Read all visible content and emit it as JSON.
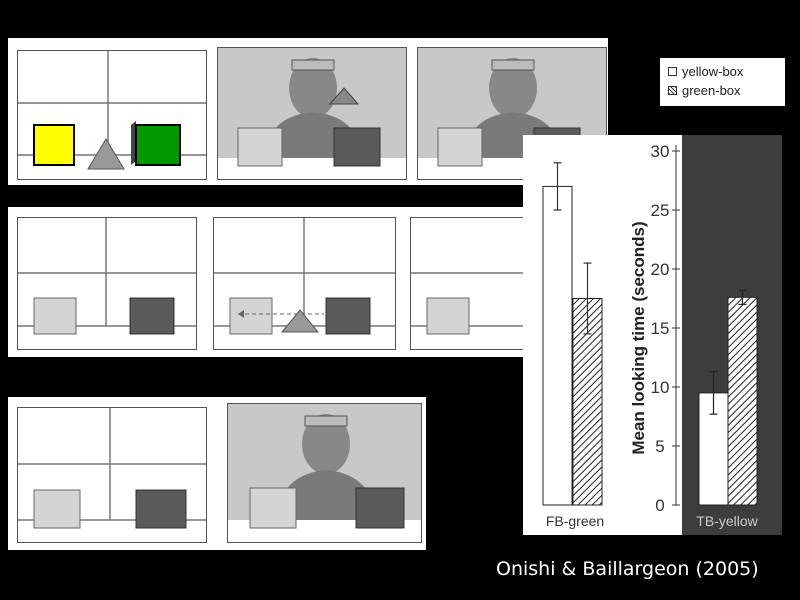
{
  "legend": {
    "yellow_label": "yellow-box",
    "green_label": "green-box"
  },
  "colors": {
    "yellow_box": "#ffff00",
    "green_box": "#009900",
    "light_box": "#d4d4d4",
    "dark_box": "#5a5a5a",
    "chart_dark_bg": "#3d3d3d"
  },
  "credit": "Onishi & Baillargeon (2005)",
  "chart_data": {
    "type": "bar",
    "title": "",
    "xlabel": "",
    "ylabel": "Mean looking time (seconds)",
    "ylim": [
      0,
      30
    ],
    "yticks": [
      0,
      5,
      10,
      15,
      20,
      25,
      30
    ],
    "categories": [
      "FB-green",
      "TB-yellow"
    ],
    "series": [
      {
        "name": "yellow-box",
        "values": [
          27.0,
          9.5
        ],
        "errors": [
          2.0,
          1.8
        ],
        "pattern": "open"
      },
      {
        "name": "green-box",
        "values": [
          17.5,
          17.6
        ],
        "errors": [
          3.0,
          0.6
        ],
        "pattern": "hatched"
      }
    ],
    "grid": false,
    "legend_position": "top-right"
  }
}
